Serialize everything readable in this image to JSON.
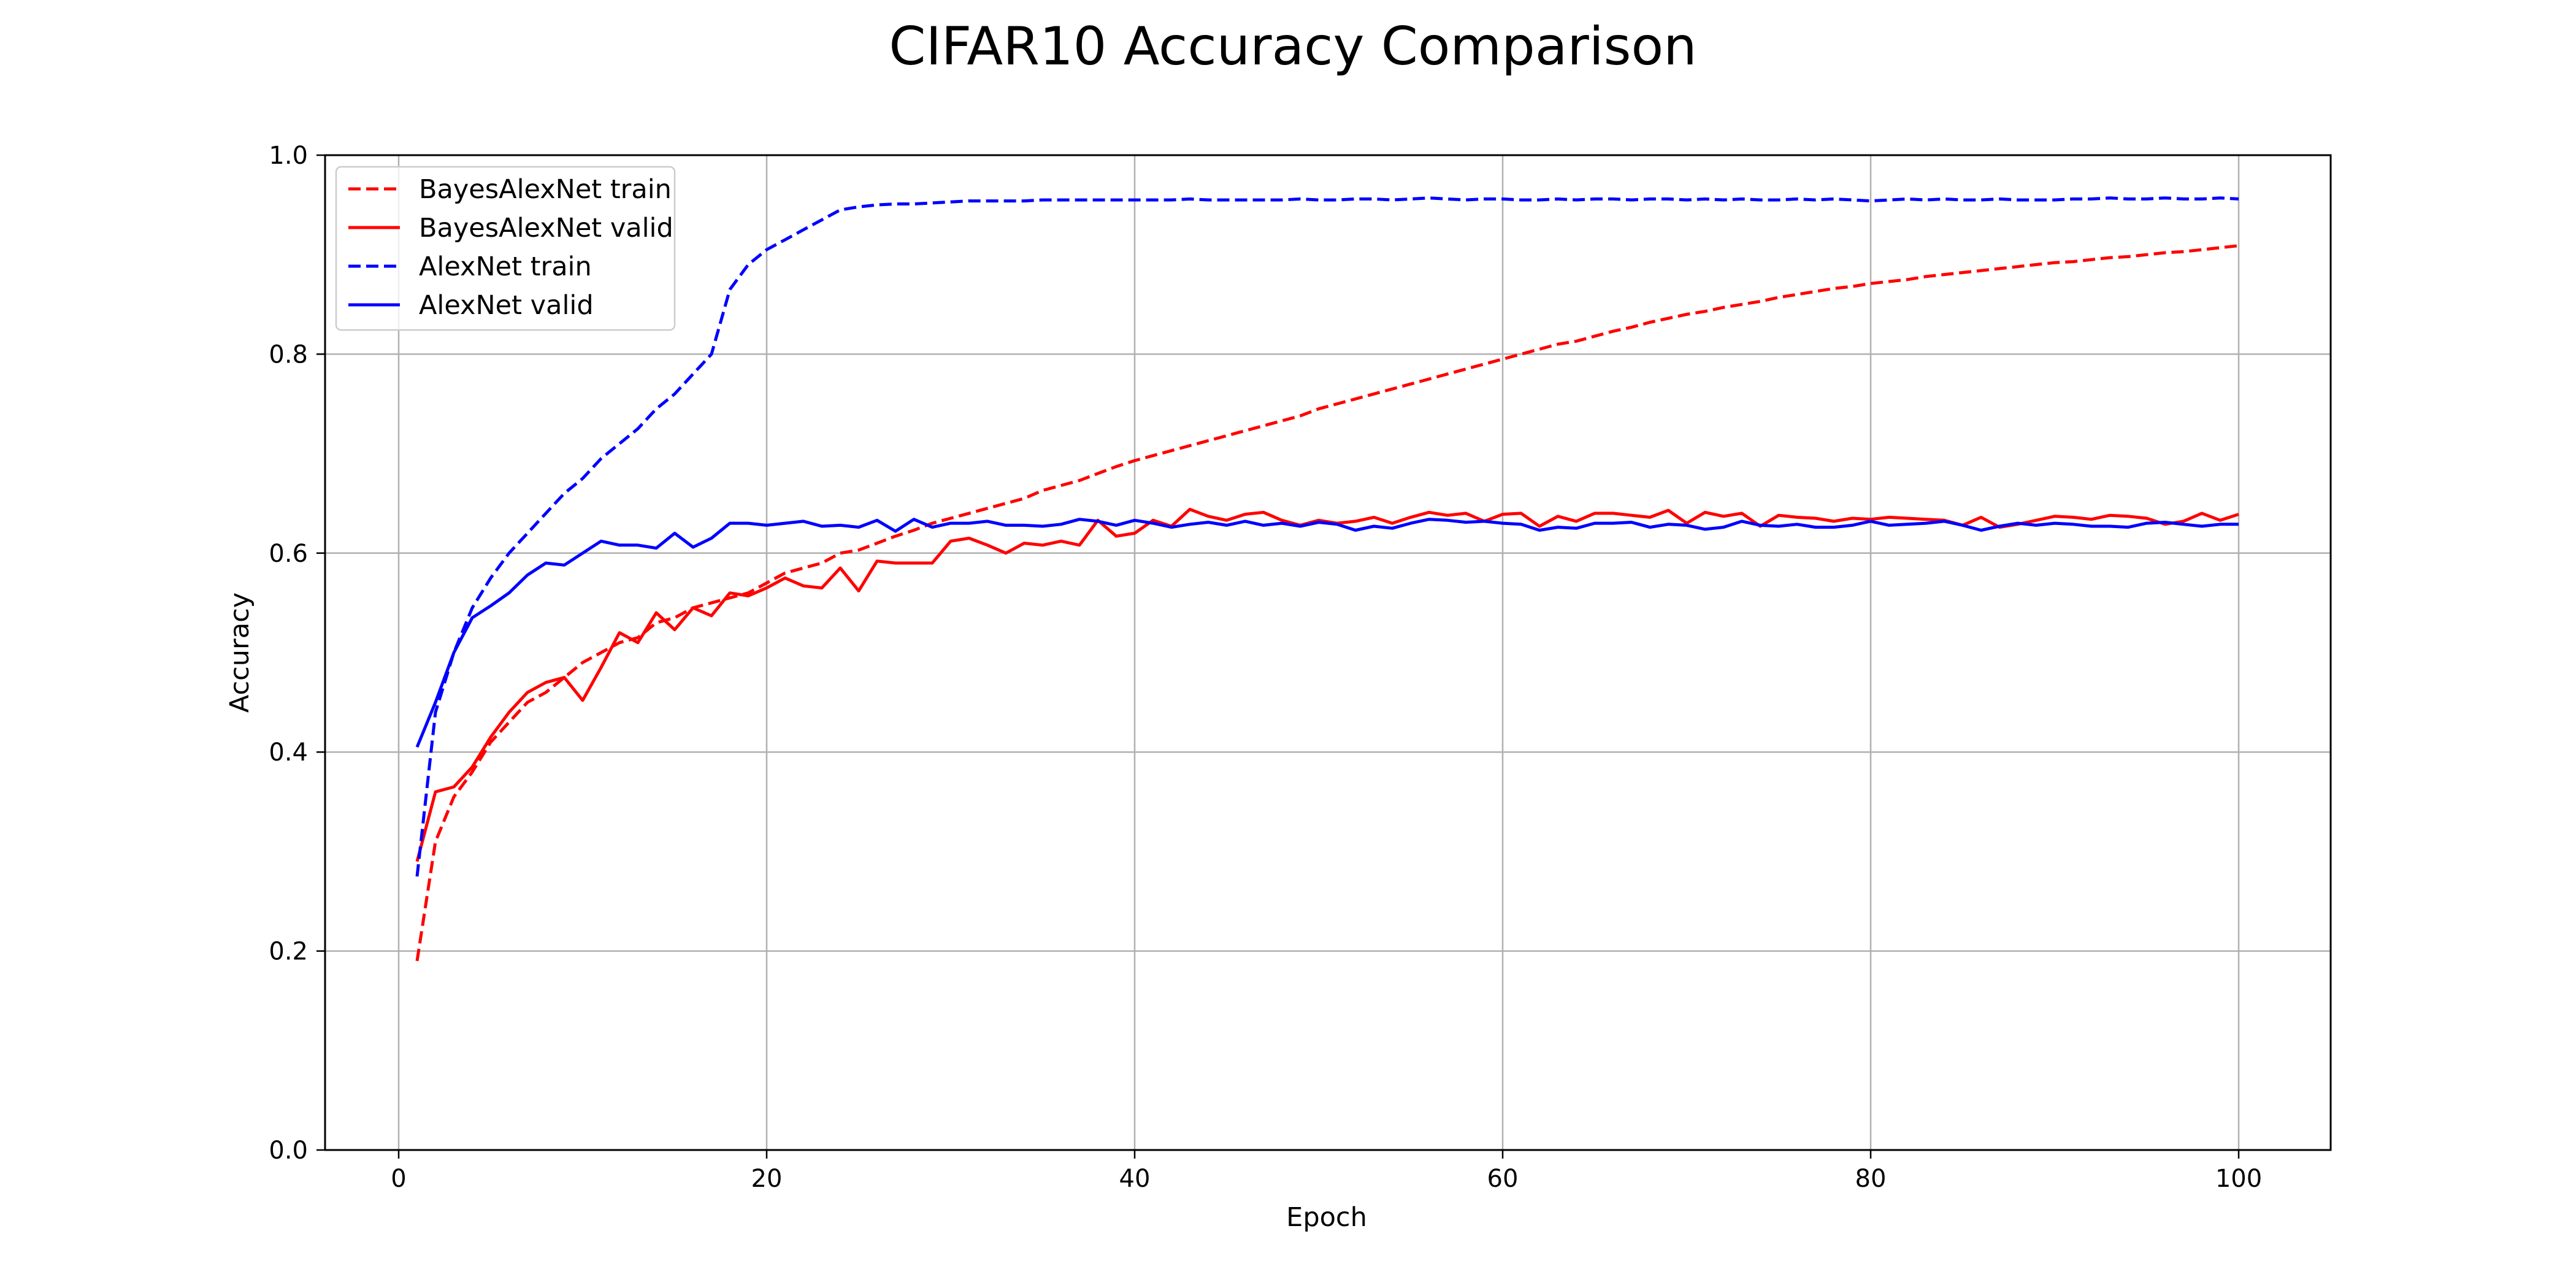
{
  "chart_data": {
    "type": "line",
    "title": "CIFAR10 Accuracy Comparison",
    "xlabel": "Epoch",
    "ylabel": "Accuracy",
    "xlim": [
      -4,
      105
    ],
    "ylim": [
      0.0,
      1.0
    ],
    "xticks": [
      0,
      20,
      40,
      60,
      80,
      100
    ],
    "yticks": [
      0.0,
      0.2,
      0.4,
      0.6,
      0.8,
      1.0
    ],
    "xtick_labels": [
      "0",
      "20",
      "40",
      "60",
      "80",
      "100"
    ],
    "ytick_labels": [
      "0.0",
      "0.2",
      "0.4",
      "0.6",
      "0.8",
      "1.0"
    ],
    "grid": true,
    "legend_position": "top-left",
    "x_start": 1,
    "series": [
      {
        "name": "BayesAlexNet train",
        "color": "#ff0000",
        "style": "dashed",
        "values": [
          0.19,
          0.31,
          0.355,
          0.38,
          0.41,
          0.43,
          0.45,
          0.46,
          0.475,
          0.49,
          0.5,
          0.51,
          0.515,
          0.53,
          0.535,
          0.545,
          0.55,
          0.555,
          0.56,
          0.57,
          0.58,
          0.585,
          0.59,
          0.6,
          0.603,
          0.61,
          0.617,
          0.623,
          0.63,
          0.635,
          0.64,
          0.645,
          0.65,
          0.655,
          0.663,
          0.668,
          0.673,
          0.68,
          0.687,
          0.693,
          0.698,
          0.703,
          0.708,
          0.713,
          0.718,
          0.723,
          0.728,
          0.733,
          0.738,
          0.745,
          0.75,
          0.755,
          0.76,
          0.765,
          0.77,
          0.775,
          0.78,
          0.785,
          0.79,
          0.795,
          0.8,
          0.805,
          0.81,
          0.813,
          0.818,
          0.823,
          0.827,
          0.832,
          0.836,
          0.84,
          0.843,
          0.847,
          0.85,
          0.853,
          0.857,
          0.86,
          0.863,
          0.866,
          0.868,
          0.871,
          0.873,
          0.875,
          0.878,
          0.88,
          0.882,
          0.884,
          0.886,
          0.888,
          0.89,
          0.892,
          0.893,
          0.895,
          0.897,
          0.898,
          0.9,
          0.902,
          0.903,
          0.905,
          0.907,
          0.909
        ]
      },
      {
        "name": "BayesAlexNet valid",
        "color": "#ff0000",
        "style": "solid",
        "values": [
          0.29,
          0.36,
          0.365,
          0.385,
          0.415,
          0.44,
          0.46,
          0.47,
          0.475,
          0.452,
          0.485,
          0.52,
          0.51,
          0.54,
          0.523,
          0.545,
          0.537,
          0.56,
          0.557,
          0.565,
          0.575,
          0.567,
          0.565,
          0.585,
          0.562,
          0.592,
          0.59,
          0.59,
          0.59,
          0.612,
          0.615,
          0.608,
          0.6,
          0.61,
          0.608,
          0.612,
          0.608,
          0.633,
          0.617,
          0.62,
          0.633,
          0.627,
          0.644,
          0.637,
          0.633,
          0.639,
          0.641,
          0.633,
          0.628,
          0.633,
          0.63,
          0.632,
          0.636,
          0.63,
          0.636,
          0.641,
          0.638,
          0.64,
          0.632,
          0.639,
          0.64,
          0.627,
          0.637,
          0.632,
          0.64,
          0.64,
          0.638,
          0.636,
          0.643,
          0.63,
          0.641,
          0.637,
          0.64,
          0.627,
          0.638,
          0.636,
          0.635,
          0.632,
          0.635,
          0.634,
          0.636,
          0.635,
          0.634,
          0.633,
          0.628,
          0.636,
          0.626,
          0.629,
          0.633,
          0.637,
          0.636,
          0.634,
          0.638,
          0.637,
          0.635,
          0.629,
          0.632,
          0.64,
          0.633,
          0.639
        ]
      },
      {
        "name": "AlexNet train",
        "color": "#0000ff",
        "style": "dashed",
        "values": [
          0.275,
          0.44,
          0.5,
          0.545,
          0.575,
          0.6,
          0.62,
          0.64,
          0.66,
          0.675,
          0.695,
          0.71,
          0.725,
          0.745,
          0.76,
          0.78,
          0.8,
          0.865,
          0.89,
          0.905,
          0.915,
          0.925,
          0.935,
          0.945,
          0.948,
          0.95,
          0.951,
          0.951,
          0.952,
          0.953,
          0.954,
          0.954,
          0.954,
          0.954,
          0.955,
          0.955,
          0.955,
          0.955,
          0.955,
          0.955,
          0.955,
          0.955,
          0.956,
          0.955,
          0.955,
          0.955,
          0.955,
          0.955,
          0.956,
          0.955,
          0.955,
          0.956,
          0.956,
          0.955,
          0.956,
          0.957,
          0.956,
          0.955,
          0.956,
          0.956,
          0.955,
          0.955,
          0.956,
          0.955,
          0.956,
          0.956,
          0.955,
          0.956,
          0.956,
          0.955,
          0.956,
          0.955,
          0.956,
          0.955,
          0.955,
          0.956,
          0.955,
          0.956,
          0.955,
          0.954,
          0.955,
          0.956,
          0.955,
          0.956,
          0.955,
          0.955,
          0.956,
          0.955,
          0.955,
          0.955,
          0.956,
          0.956,
          0.957,
          0.956,
          0.956,
          0.957,
          0.956,
          0.956,
          0.957,
          0.956
        ]
      },
      {
        "name": "AlexNet valid",
        "color": "#0000ff",
        "style": "solid",
        "values": [
          0.405,
          0.45,
          0.5,
          0.535,
          0.547,
          0.56,
          0.578,
          0.59,
          0.588,
          0.6,
          0.612,
          0.608,
          0.608,
          0.605,
          0.62,
          0.606,
          0.615,
          0.63,
          0.63,
          0.628,
          0.63,
          0.632,
          0.627,
          0.628,
          0.626,
          0.633,
          0.622,
          0.634,
          0.626,
          0.63,
          0.63,
          0.632,
          0.628,
          0.628,
          0.627,
          0.629,
          0.634,
          0.632,
          0.628,
          0.633,
          0.63,
          0.626,
          0.629,
          0.631,
          0.628,
          0.632,
          0.628,
          0.63,
          0.627,
          0.631,
          0.629,
          0.623,
          0.627,
          0.625,
          0.63,
          0.634,
          0.633,
          0.631,
          0.632,
          0.63,
          0.629,
          0.623,
          0.626,
          0.625,
          0.63,
          0.63,
          0.631,
          0.626,
          0.629,
          0.628,
          0.624,
          0.626,
          0.632,
          0.628,
          0.627,
          0.629,
          0.626,
          0.626,
          0.628,
          0.632,
          0.628,
          0.629,
          0.63,
          0.632,
          0.628,
          0.623,
          0.627,
          0.63,
          0.628,
          0.63,
          0.629,
          0.627,
          0.627,
          0.626,
          0.63,
          0.631,
          0.629,
          0.627,
          0.629,
          0.629
        ]
      }
    ]
  }
}
